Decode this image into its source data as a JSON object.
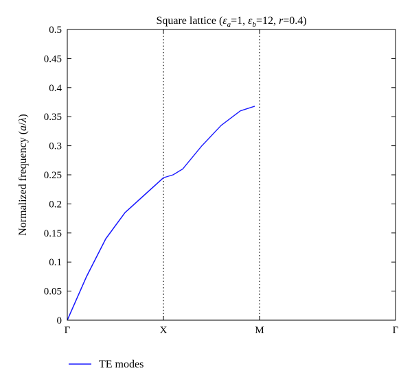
{
  "chart_data": {
    "type": "line",
    "title": {
      "prefix": "Square lattice (",
      "eps_a_sym": "ε",
      "eps_a_sub": "a",
      "eps_a_val": "=1, ",
      "eps_b_sym": "ε",
      "eps_b_sub": "b",
      "eps_b_val": "=12, ",
      "r_sym": "r",
      "r_val": "=0.4)"
    },
    "ylabel": {
      "prefix": "Normalized frequency (",
      "a": "a",
      "slash": "/",
      "lambda": "λ",
      "suffix": ")"
    },
    "xlabel": "",
    "ylim": [
      0,
      0.5
    ],
    "xlim": [
      0,
      3.414
    ],
    "yticks": [
      {
        "value": 0,
        "label": "0"
      },
      {
        "value": 0.05,
        "label": "0.05"
      },
      {
        "value": 0.1,
        "label": "0.1"
      },
      {
        "value": 0.15,
        "label": "0.15"
      },
      {
        "value": 0.2,
        "label": "0.2"
      },
      {
        "value": 0.25,
        "label": "0.25"
      },
      {
        "value": 0.3,
        "label": "0.3"
      },
      {
        "value": 0.35,
        "label": "0.35"
      },
      {
        "value": 0.4,
        "label": "0.4"
      },
      {
        "value": 0.45,
        "label": "0.45"
      },
      {
        "value": 0.5,
        "label": "0.5"
      }
    ],
    "xticks": [
      {
        "value": 0,
        "label": "Γ"
      },
      {
        "value": 1,
        "label": "X"
      },
      {
        "value": 2,
        "label": "M"
      },
      {
        "value": 3.414,
        "label": "Γ"
      }
    ],
    "symmetry_lines": [
      1,
      2
    ],
    "grid": false,
    "legend_position": "bottom-left",
    "colors": {
      "te": "#1a1aff",
      "light_line": "#000000",
      "operating": "#e00000",
      "dotted": "#000000"
    },
    "series": [
      {
        "name": "TE modes",
        "legend": true,
        "role": "te",
        "points": [
          [
            0,
            0
          ],
          [
            0.2,
            0.075
          ],
          [
            0.4,
            0.14
          ],
          [
            0.6,
            0.185
          ],
          [
            0.8,
            0.215
          ],
          [
            1,
            0.245
          ],
          [
            1.1,
            0.25
          ],
          [
            1.2,
            0.26
          ],
          [
            1.4,
            0.3
          ],
          [
            1.6,
            0.335
          ],
          [
            1.8,
            0.36
          ],
          [
            1.95,
            0.368
          ]
        ]
      },
      {
        "name": "",
        "role": "te",
        "points": [
          [
            0,
            0
          ],
          [
            0.2,
            0.075
          ],
          [
            0.4,
            0.14
          ],
          [
            0.6,
            0.185
          ],
          [
            0.8,
            0.215
          ],
          [
            1,
            0.245
          ]
        ]
      }
    ]
  }
}
